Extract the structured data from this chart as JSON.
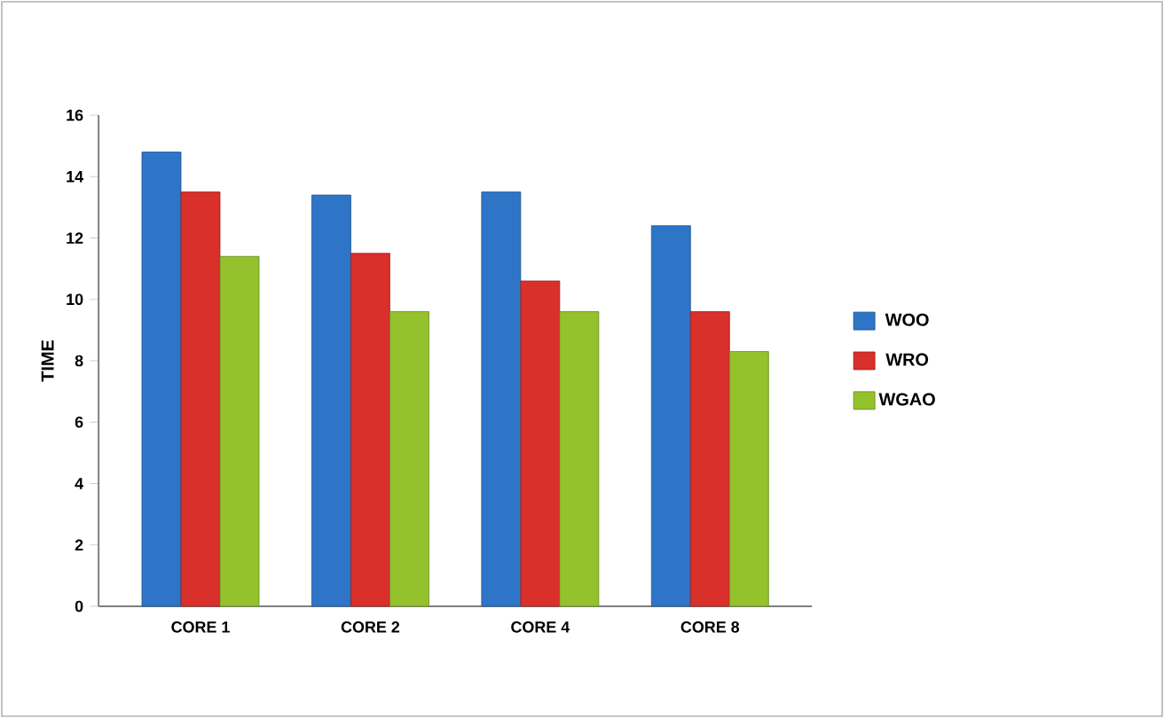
{
  "chart_data": {
    "type": "bar",
    "ylabel": "TIME",
    "categories": [
      "CORE 1",
      "CORE 2",
      "CORE 4",
      "CORE 8"
    ],
    "series": [
      {
        "name": "WOO",
        "color": "#2e75c8",
        "values": [
          14.8,
          13.4,
          13.5,
          12.4
        ]
      },
      {
        "name": "WRO",
        "color": "#d9302c",
        "values": [
          13.5,
          11.5,
          10.6,
          9.6
        ]
      },
      {
        "name": "WGAO",
        "color": "#94c22c",
        "values": [
          11.4,
          9.6,
          9.6,
          8.3
        ]
      }
    ],
    "ylim": [
      0,
      16
    ],
    "yticks": [
      0,
      2,
      4,
      6,
      8,
      10,
      12,
      14,
      16
    ],
    "grid": false,
    "legend": "right"
  }
}
